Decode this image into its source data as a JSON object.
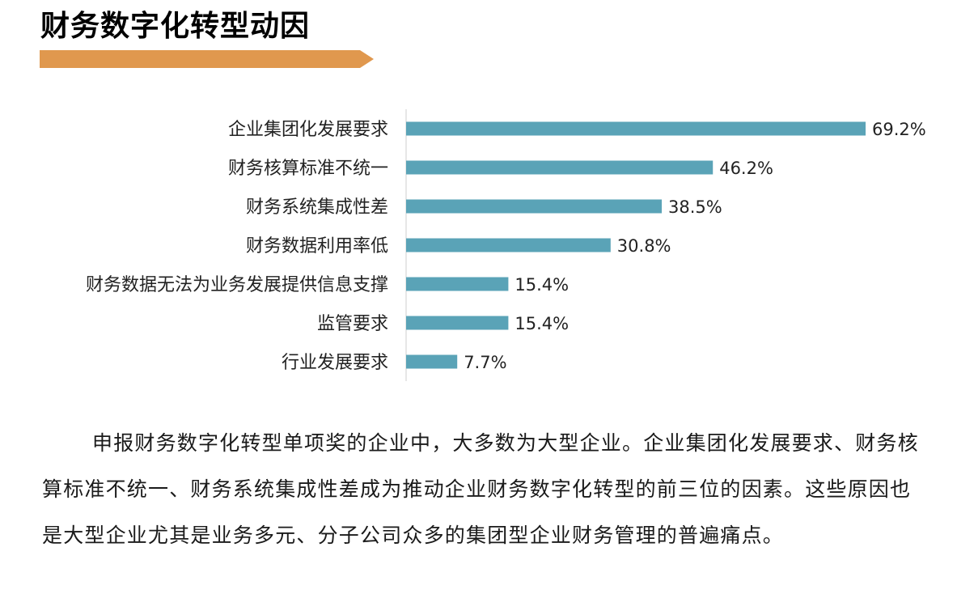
{
  "page_title": "财务数字化转型动因",
  "accent_color": "#E0984E",
  "bar_color": "#5AA3B7",
  "chart_data": {
    "type": "bar",
    "orientation": "horizontal",
    "categories": [
      "企业集团化发展要求",
      "财务核算标准不统一",
      "财务系统集成性差",
      "财务数据利用率低",
      "财务数据无法为业务发展提供信息支撑",
      "监管要求",
      "行业发展要求"
    ],
    "values": [
      69.2,
      46.2,
      38.5,
      30.8,
      15.4,
      15.4,
      7.7
    ],
    "value_labels": [
      "69.2%",
      "46.2%",
      "38.5%",
      "30.8%",
      "15.4%",
      "15.4%",
      "7.7%"
    ],
    "unit": "%",
    "xlim": [
      0,
      69.2
    ],
    "grid": false,
    "legend": "none"
  },
  "summary": "申报财务数字化转型单项奖的企业中，大多数为大型企业。企业集团化发展要求、财务核算标准不统一、财务系统集成性差成为推动企业财务数字化转型的前三位的因素。这些原因也是大型企业尤其是业务多元、分子公司众多的集团型企业财务管理的普遍痛点。"
}
